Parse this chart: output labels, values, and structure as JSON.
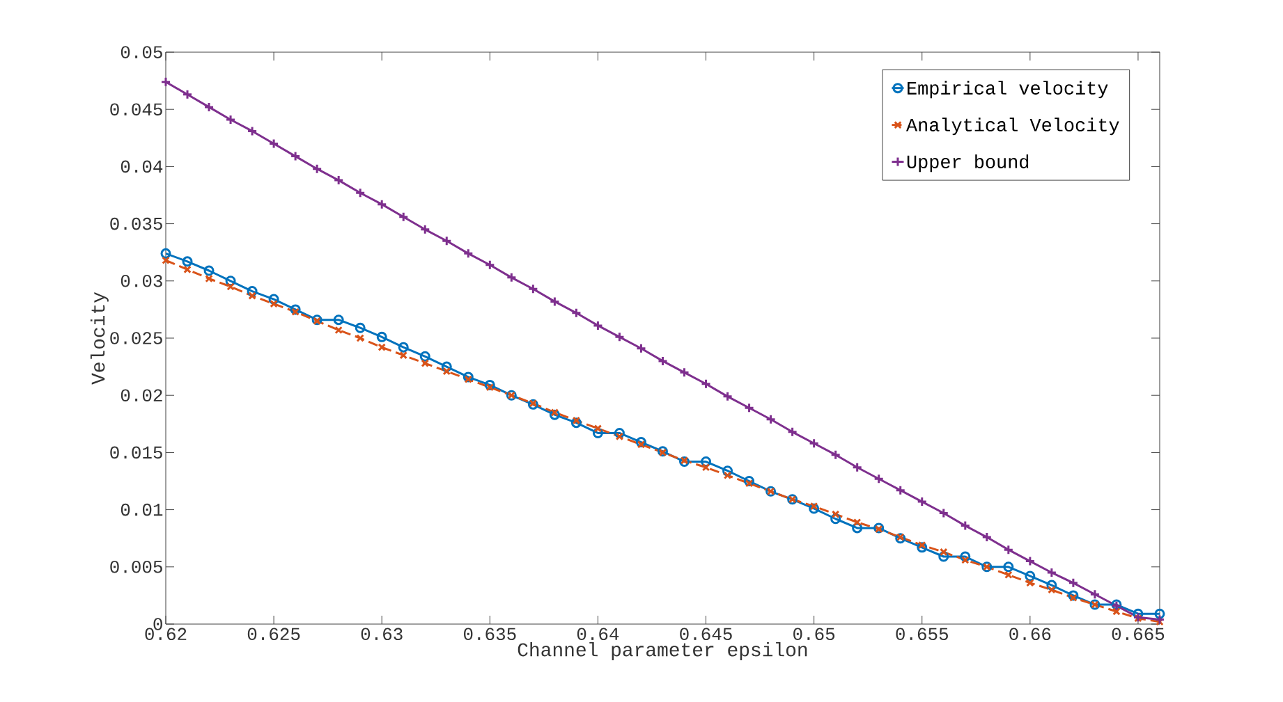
{
  "chart_data": {
    "type": "line",
    "xlabel": "Channel parameter epsilon",
    "ylabel": "Velocity",
    "x": [
      0.62,
      0.621,
      0.622,
      0.623,
      0.624,
      0.625,
      0.626,
      0.627,
      0.628,
      0.629,
      0.63,
      0.631,
      0.632,
      0.633,
      0.634,
      0.635,
      0.636,
      0.637,
      0.638,
      0.639,
      0.64,
      0.641,
      0.642,
      0.643,
      0.644,
      0.645,
      0.646,
      0.647,
      0.648,
      0.649,
      0.65,
      0.651,
      0.652,
      0.653,
      0.654,
      0.655,
      0.656,
      0.657,
      0.658,
      0.659,
      0.66,
      0.661,
      0.662,
      0.663,
      0.664,
      0.665,
      0.666
    ],
    "series": [
      {
        "name": "Empirical velocity",
        "color": "#0072bd",
        "marker": "circle",
        "line_style": "solid",
        "values": [
          0.0324,
          0.0317,
          0.0309,
          0.03,
          0.0291,
          0.0284,
          0.0275,
          0.0266,
          0.0266,
          0.0259,
          0.0251,
          0.0242,
          0.0234,
          0.0225,
          0.0216,
          0.0209,
          0.02,
          0.0192,
          0.0183,
          0.0176,
          0.0167,
          0.0167,
          0.0159,
          0.0151,
          0.0142,
          0.0142,
          0.0134,
          0.0125,
          0.0116,
          0.0109,
          0.0101,
          0.0092,
          0.0084,
          0.0084,
          0.0075,
          0.0067,
          0.0059,
          0.0059,
          0.005,
          0.005,
          0.0042,
          0.0034,
          0.0025,
          0.0017,
          0.0017,
          0.0009,
          0.0009
        ]
      },
      {
        "name": "Analytical Velocity",
        "color": "#d95319",
        "marker": "cross",
        "line_style": "dashed",
        "values": [
          0.0318,
          0.031,
          0.0302,
          0.0295,
          0.0287,
          0.028,
          0.0273,
          0.0265,
          0.0257,
          0.025,
          0.0242,
          0.0235,
          0.0228,
          0.0221,
          0.0214,
          0.0207,
          0.02,
          0.0193,
          0.0185,
          0.0178,
          0.0171,
          0.0164,
          0.0157,
          0.015,
          0.0143,
          0.0137,
          0.013,
          0.0123,
          0.0116,
          0.0109,
          0.0103,
          0.0096,
          0.0089,
          0.0083,
          0.0076,
          0.0069,
          0.0063,
          0.0056,
          0.005,
          0.0043,
          0.0036,
          0.003,
          0.0023,
          0.0017,
          0.0011,
          0.0005,
          0.0002
        ]
      },
      {
        "name": "Upper bound",
        "color": "#7e2f8e",
        "marker": "plus",
        "line_style": "solid",
        "values": [
          0.0474,
          0.0463,
          0.0452,
          0.0441,
          0.0431,
          0.042,
          0.0409,
          0.0398,
          0.0388,
          0.0377,
          0.0367,
          0.0356,
          0.0345,
          0.0335,
          0.0324,
          0.0314,
          0.0303,
          0.0293,
          0.0282,
          0.0272,
          0.0261,
          0.0251,
          0.0241,
          0.023,
          0.022,
          0.021,
          0.0199,
          0.0189,
          0.0179,
          0.0168,
          0.0158,
          0.0148,
          0.0137,
          0.0127,
          0.0117,
          0.0107,
          0.0097,
          0.0086,
          0.0076,
          0.0065,
          0.0055,
          0.0045,
          0.0036,
          0.0026,
          0.0016,
          0.0006,
          0.0004
        ]
      }
    ],
    "xlim": [
      0.62,
      0.666
    ],
    "xticks": [
      0.62,
      0.625,
      0.63,
      0.635,
      0.64,
      0.645,
      0.65,
      0.655,
      0.66,
      0.665
    ],
    "ylim": [
      0,
      0.05
    ],
    "yticks": [
      0,
      0.005,
      0.01,
      0.015,
      0.02,
      0.025,
      0.03,
      0.035,
      0.04,
      0.045,
      0.05
    ],
    "grid": false,
    "legend": "top right"
  }
}
